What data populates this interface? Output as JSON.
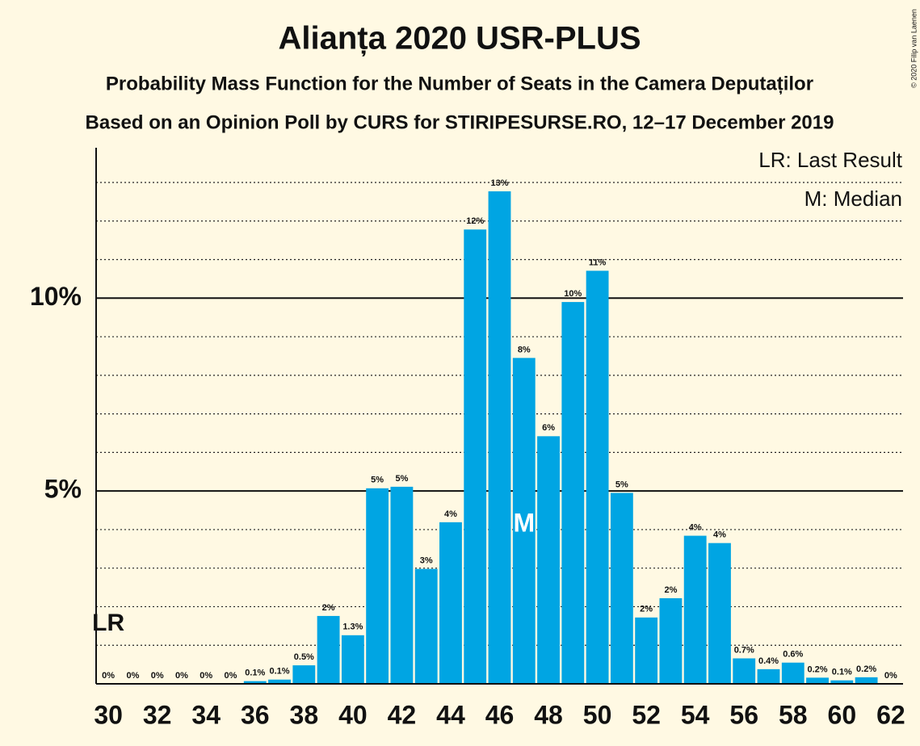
{
  "chart_data": {
    "type": "bar",
    "title": "Alianța 2020 USR-PLUS",
    "subtitles": [
      "Probability Mass Function for the Number of Seats in the Camera Deputaților",
      "Based on an Opinion Poll by CURS for STIRIPESURSE.RO, 12–17 December 2019"
    ],
    "x": [
      30,
      31,
      32,
      33,
      34,
      35,
      36,
      37,
      38,
      39,
      40,
      41,
      42,
      43,
      44,
      45,
      46,
      47,
      48,
      49,
      50,
      51,
      52,
      53,
      54,
      55,
      56,
      57,
      58,
      59,
      60,
      61,
      62
    ],
    "values": [
      0,
      0,
      0,
      0,
      0,
      0,
      0.07,
      0.11,
      0.48,
      1.76,
      1.26,
      5.07,
      5.11,
      2.98,
      4.19,
      11.78,
      12.77,
      8.45,
      6.42,
      9.9,
      10.71,
      4.95,
      1.72,
      2.22,
      3.84,
      3.65,
      0.66,
      0.38,
      0.55,
      0.16,
      0.09,
      0.17,
      0
    ],
    "value_labels": [
      "0%",
      "0%",
      "0%",
      "0%",
      "0%",
      "0%",
      "0.1%",
      "0.1%",
      "0.5%",
      "2%",
      "1.3%",
      "5%",
      "5%",
      "3%",
      "4%",
      "12%",
      "13%",
      "8%",
      "6%",
      "10%",
      "11%",
      "5%",
      "2%",
      "2%",
      "4%",
      "4%",
      "0.7%",
      "0.4%",
      "0.6%",
      "0.2%",
      "0.1%",
      "0.2%",
      "0%"
    ],
    "color": "#00a5e3",
    "xlim": [
      29.5,
      62.5
    ],
    "xticks": [
      30,
      32,
      34,
      36,
      38,
      40,
      42,
      44,
      46,
      48,
      50,
      52,
      54,
      56,
      58,
      60,
      62
    ],
    "ylim": [
      0,
      13.9
    ],
    "yticks": [
      {
        "value": 5,
        "label": "5%"
      },
      {
        "value": 10,
        "label": "10%"
      }
    ],
    "minor_yticks": [
      1,
      2,
      3,
      4,
      6,
      7,
      8,
      9,
      11,
      12,
      13
    ],
    "last_result": {
      "x": 30,
      "label": "LR"
    },
    "median": {
      "x": 47,
      "label": "M"
    },
    "legend": [
      "LR: Last Result",
      "M: Median"
    ],
    "credit": "© 2020 Filip van Laenen"
  }
}
